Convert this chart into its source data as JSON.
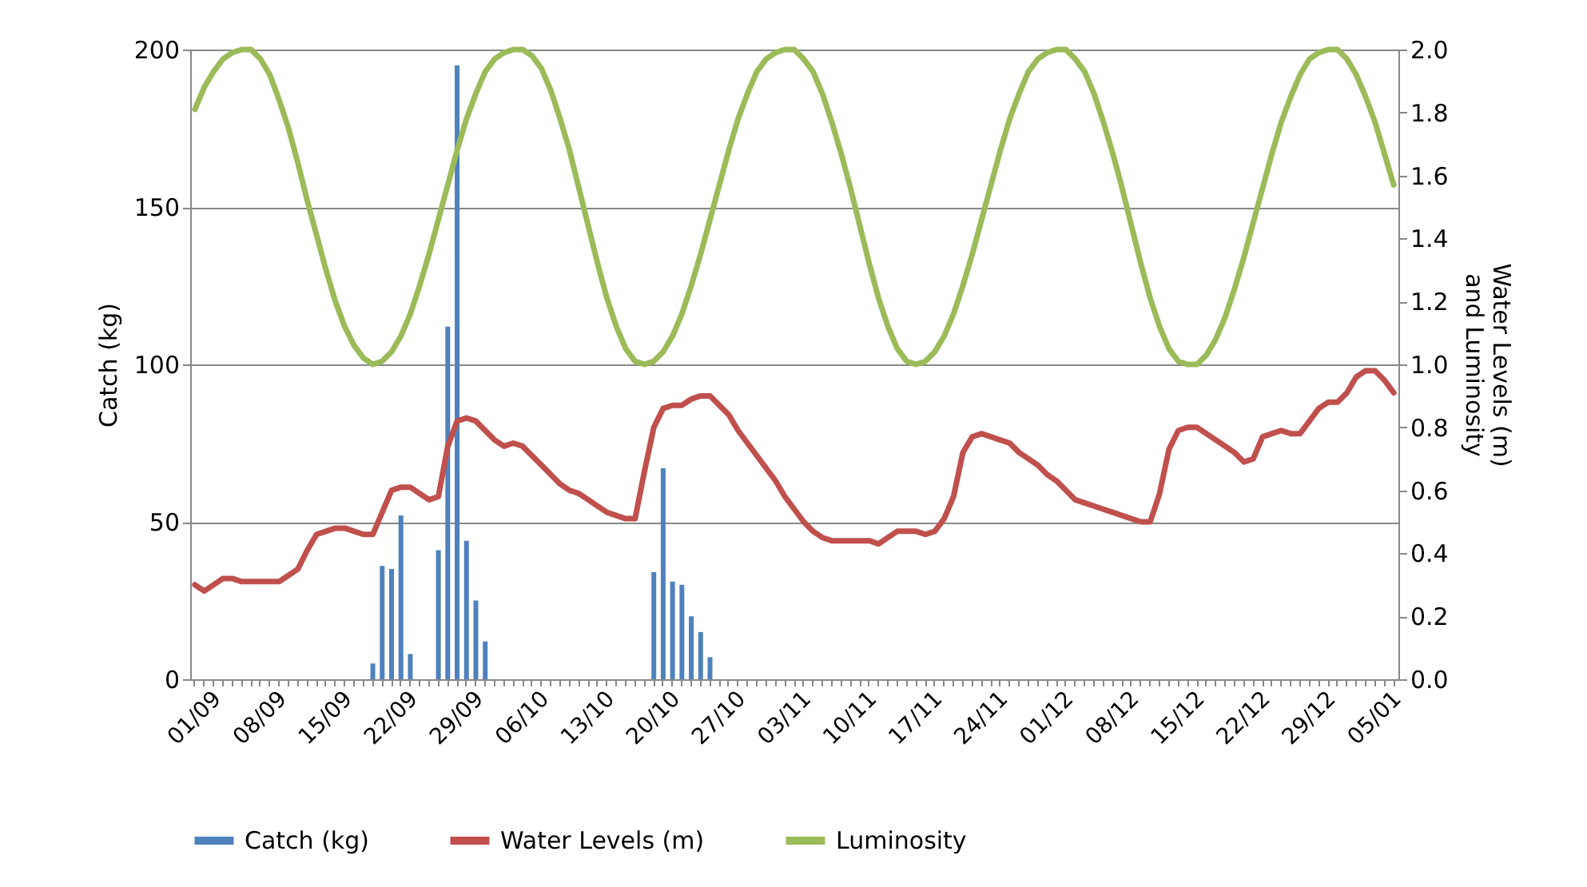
{
  "chart_data": {
    "type": "bar",
    "ylabel": "Catch (kg)",
    "y2label": "Water Levels (m)\nand Luminosity",
    "categories": [
      "01/09",
      null,
      null,
      null,
      null,
      null,
      null,
      "08/09",
      null,
      null,
      null,
      null,
      null,
      null,
      "15/09",
      null,
      null,
      null,
      null,
      null,
      null,
      "22/09",
      null,
      null,
      null,
      null,
      null,
      null,
      "29/09",
      null,
      null,
      null,
      null,
      null,
      null,
      "06/10",
      null,
      null,
      null,
      null,
      null,
      null,
      "13/10",
      null,
      null,
      null,
      null,
      null,
      null,
      "20/10",
      null,
      null,
      null,
      null,
      null,
      null,
      "27/10",
      null,
      null,
      null,
      null,
      null,
      null,
      "03/11",
      null,
      null,
      null,
      null,
      null,
      null,
      "10/11",
      null,
      null,
      null,
      null,
      null,
      null,
      "17/11",
      null,
      null,
      null,
      null,
      null,
      null,
      "24/11",
      null,
      null,
      null,
      null,
      null,
      null,
      "01/12",
      null,
      null,
      null,
      null,
      null,
      null,
      "08/12",
      null,
      null,
      null,
      null,
      null,
      null,
      "15/12",
      null,
      null,
      null,
      null,
      null,
      null,
      "22/12",
      null,
      null,
      null,
      null,
      null,
      null,
      "29/12",
      null,
      null,
      null,
      null,
      null,
      null,
      "05/01",
      null,
      null
    ],
    "series": [
      {
        "name": "Catch (kg)",
        "color": "#4f81bd",
        "values": [
          null,
          null,
          null,
          null,
          null,
          null,
          null,
          null,
          null,
          null,
          null,
          null,
          null,
          null,
          null,
          null,
          null,
          null,
          null,
          5,
          36,
          35,
          52,
          8,
          null,
          null,
          41,
          112,
          195,
          44,
          25,
          12,
          null,
          null,
          null,
          null,
          null,
          null,
          null,
          null,
          null,
          null,
          null,
          null,
          null,
          null,
          null,
          null,
          null,
          34,
          67,
          31,
          30,
          20,
          15,
          7,
          null,
          null,
          null,
          null,
          null,
          null,
          null,
          null,
          null,
          null,
          null,
          null,
          null,
          null,
          null,
          null,
          null,
          null,
          null,
          null,
          null,
          null,
          null,
          null,
          null,
          null,
          null,
          null,
          null,
          null,
          null,
          null,
          null,
          null,
          null,
          null,
          null,
          null,
          null,
          null,
          null,
          null,
          null,
          null,
          null,
          null,
          null,
          null,
          null,
          null,
          null,
          null,
          null,
          null,
          null,
          null,
          null,
          null,
          null,
          null,
          null,
          null,
          null,
          null,
          null,
          null,
          null,
          null,
          null,
          null,
          null,
          null,
          null
        ]
      },
      {
        "name": "Water Levels (m)",
        "type": "line",
        "axis": "y2",
        "color": "#c0504d",
        "values": [
          0.3,
          0.28,
          0.3,
          0.32,
          0.32,
          0.31,
          0.31,
          0.31,
          0.31,
          0.31,
          0.33,
          0.35,
          0.41,
          0.46,
          0.47,
          0.48,
          0.48,
          0.47,
          0.46,
          0.46,
          0.53,
          0.6,
          0.61,
          0.61,
          0.59,
          0.57,
          0.58,
          0.74,
          0.82,
          0.83,
          0.82,
          0.79,
          0.76,
          0.74,
          0.75,
          0.74,
          0.71,
          0.68,
          0.65,
          0.62,
          0.6,
          0.59,
          0.57,
          0.55,
          0.53,
          0.52,
          0.51,
          0.51,
          0.66,
          0.8,
          0.86,
          0.87,
          0.87,
          0.89,
          0.9,
          0.9,
          0.87,
          0.84,
          0.79,
          0.75,
          0.71,
          0.67,
          0.63,
          0.58,
          0.54,
          0.5,
          0.47,
          0.45,
          0.44,
          0.44,
          0.44,
          0.44,
          0.44,
          0.43,
          0.45,
          0.47,
          0.47,
          0.47,
          0.46,
          0.47,
          0.51,
          0.58,
          0.72,
          0.77,
          0.78,
          0.77,
          0.76,
          0.75,
          0.72,
          0.7,
          0.68,
          0.65,
          0.63,
          0.6,
          0.57,
          0.56,
          0.55,
          0.54,
          0.53,
          0.52,
          0.51,
          0.5,
          0.5,
          0.59,
          0.73,
          0.79,
          0.8,
          0.8,
          0.78,
          0.76,
          0.74,
          0.72,
          0.69,
          0.7,
          0.77,
          0.78,
          0.79,
          0.78,
          0.78,
          0.82,
          0.86,
          0.88,
          0.88,
          0.91,
          0.96,
          0.98,
          0.98,
          0.95,
          0.91
        ]
      },
      {
        "name": "Luminosity",
        "type": "line",
        "axis": "y2",
        "color": "#9bbb59",
        "values": [
          1.81,
          1.88,
          1.93,
          1.97,
          1.99,
          2.0,
          2.0,
          1.97,
          1.92,
          1.84,
          1.75,
          1.64,
          1.52,
          1.41,
          1.3,
          1.2,
          1.12,
          1.06,
          1.02,
          1.0,
          1.01,
          1.04,
          1.09,
          1.16,
          1.25,
          1.35,
          1.46,
          1.57,
          1.68,
          1.78,
          1.86,
          1.93,
          1.97,
          1.99,
          2.0,
          2.0,
          1.98,
          1.94,
          1.87,
          1.78,
          1.68,
          1.56,
          1.44,
          1.32,
          1.21,
          1.12,
          1.05,
          1.01,
          1.0,
          1.01,
          1.04,
          1.09,
          1.16,
          1.25,
          1.35,
          1.46,
          1.57,
          1.68,
          1.78,
          1.86,
          1.93,
          1.97,
          1.99,
          2.0,
          2.0,
          1.97,
          1.93,
          1.86,
          1.77,
          1.67,
          1.56,
          1.44,
          1.32,
          1.21,
          1.12,
          1.05,
          1.01,
          1.0,
          1.01,
          1.04,
          1.09,
          1.16,
          1.25,
          1.35,
          1.46,
          1.57,
          1.68,
          1.78,
          1.86,
          1.93,
          1.97,
          1.99,
          2.0,
          2.0,
          1.97,
          1.93,
          1.86,
          1.77,
          1.67,
          1.56,
          1.44,
          1.32,
          1.21,
          1.12,
          1.05,
          1.01,
          1.0,
          1.0,
          1.03,
          1.08,
          1.15,
          1.24,
          1.34,
          1.45,
          1.56,
          1.67,
          1.77,
          1.85,
          1.92,
          1.97,
          1.99,
          2.0,
          2.0,
          1.97,
          1.92,
          1.85,
          1.77,
          1.67,
          1.57
        ]
      }
    ],
    "ylim": [
      0,
      200
    ],
    "yticks": [
      0,
      50,
      100,
      150,
      200
    ],
    "y2lim": [
      0,
      2
    ],
    "y2ticks": [
      {
        "value": 0,
        "label": "0.0"
      },
      {
        "value": 0.2,
        "label": "0.2"
      },
      {
        "value": 0.4,
        "label": "0.4"
      },
      {
        "value": 0.6,
        "label": "0.6"
      },
      {
        "value": 0.8,
        "label": "0.8"
      },
      {
        "value": 1,
        "label": "1.0"
      },
      {
        "value": 1.2,
        "label": "1.2"
      },
      {
        "value": 1.4,
        "label": "1.4"
      },
      {
        "value": 1.6,
        "label": "1.6"
      },
      {
        "value": 1.8,
        "label": "1.8"
      },
      {
        "value": 2,
        "label": "2.0"
      }
    ],
    "grid": "y",
    "legend": "bottom"
  }
}
